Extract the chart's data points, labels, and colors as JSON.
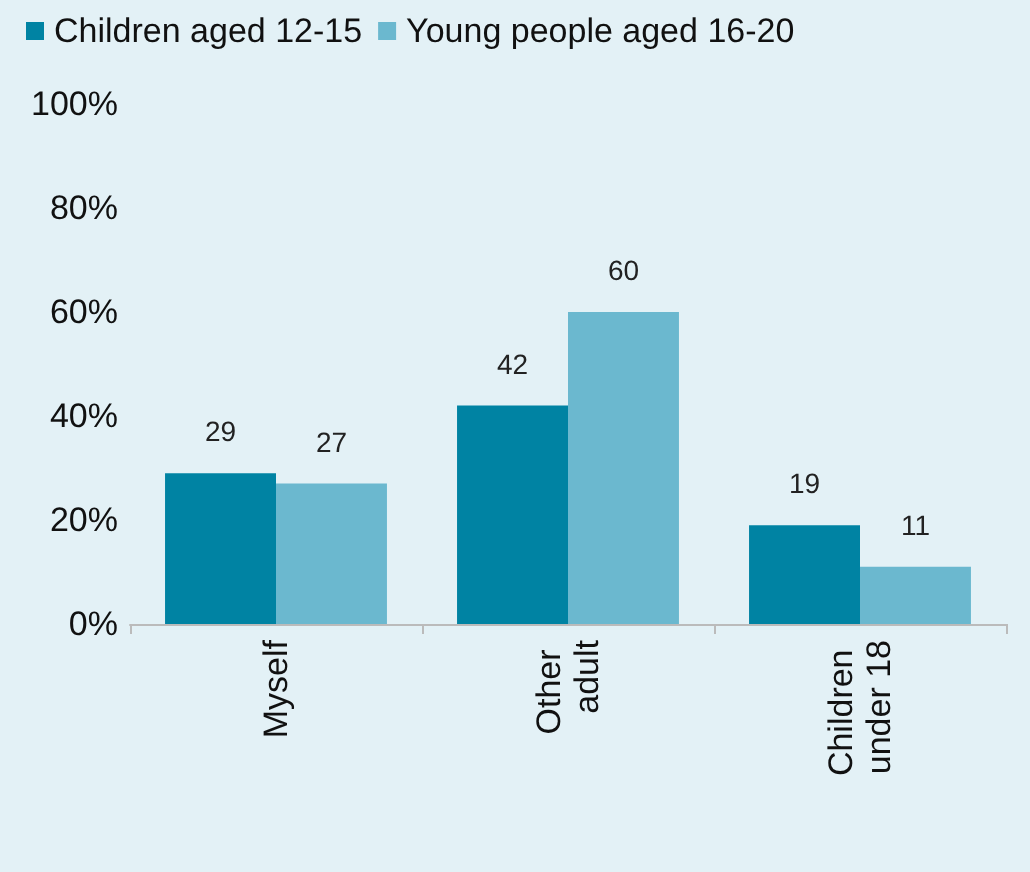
{
  "chart_data": {
    "type": "bar",
    "categories": [
      "Myself",
      "Other adult",
      "Children under 18"
    ],
    "series": [
      {
        "name": "Children aged 12-15",
        "color": "#0083a3",
        "values": [
          29,
          42,
          19
        ]
      },
      {
        "name": "Young people aged 16-20",
        "color": "#6bb8cf",
        "values": [
          27,
          60,
          11
        ]
      }
    ],
    "ylim": [
      0,
      100
    ],
    "yticks": [
      {
        "value": 0,
        "label": "0%"
      },
      {
        "value": 20,
        "label": "20%"
      },
      {
        "value": 40,
        "label": "40%"
      },
      {
        "value": 60,
        "label": "60%"
      },
      {
        "value": 80,
        "label": "80%"
      },
      {
        "value": 100,
        "label": "100%"
      }
    ],
    "data_labels": true,
    "legend": "top",
    "grid": false
  }
}
